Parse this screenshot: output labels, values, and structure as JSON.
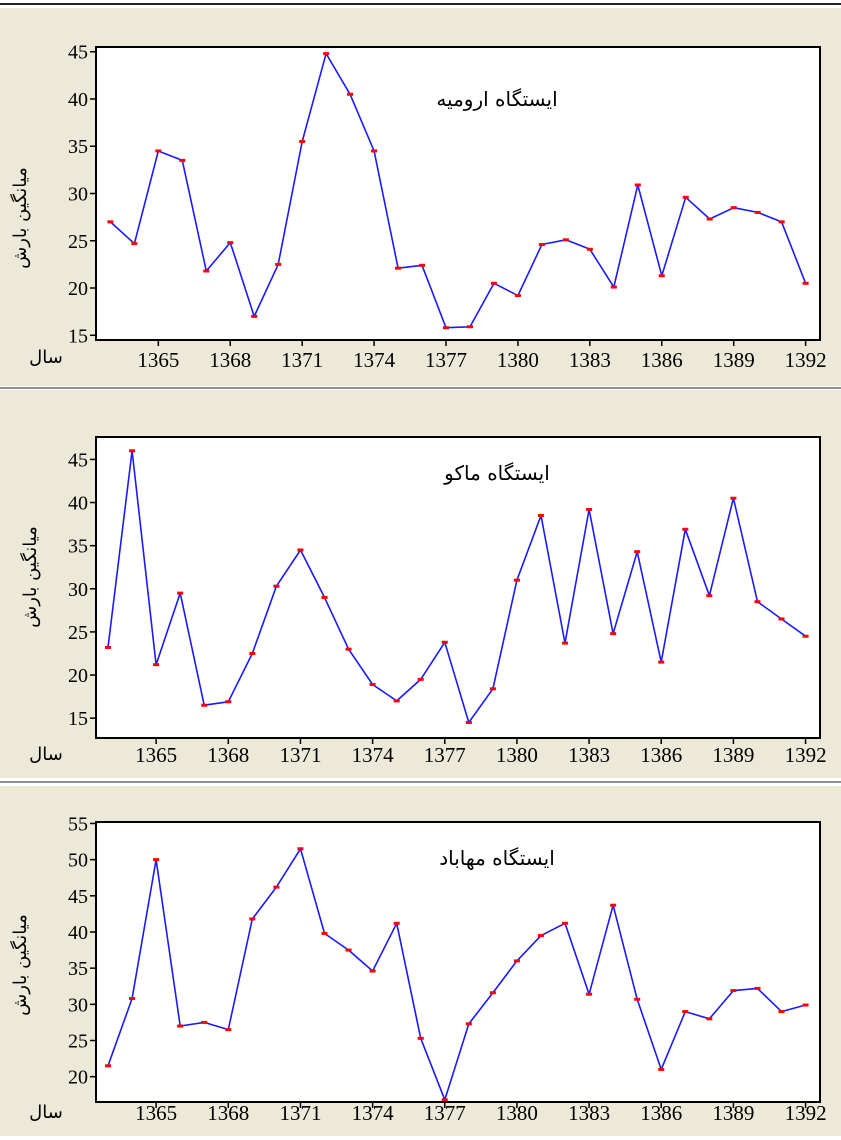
{
  "colors": {
    "panel_bg": "#ece9d8",
    "plot_bg": "#ffffff",
    "line": "#1a1aff",
    "marker": "#ff0000",
    "divider": "#222222"
  },
  "chart_data": [
    {
      "type": "line",
      "title": "ایستگاه ارومیه",
      "ylabel": "میانگین بارش",
      "xlabel": "سال",
      "x": [
        1363,
        1364,
        1365,
        1366,
        1367,
        1368,
        1369,
        1370,
        1371,
        1372,
        1373,
        1374,
        1375,
        1376,
        1377,
        1378,
        1379,
        1380,
        1381,
        1382,
        1383,
        1384,
        1385,
        1386,
        1387,
        1388,
        1389,
        1390,
        1391,
        1392
      ],
      "values": [
        27,
        24.7,
        34.5,
        33.5,
        21.8,
        24.8,
        17,
        22.5,
        35.5,
        44.8,
        40.5,
        34.5,
        22.1,
        22.4,
        15.8,
        15.9,
        20.5,
        19.2,
        24.6,
        25.1,
        24.1,
        20.1,
        30.9,
        21.3,
        29.6,
        27.3,
        28.5,
        28,
        27,
        20.5
      ],
      "yticks": [
        15,
        20,
        25,
        30,
        35,
        40,
        45
      ],
      "xticks": [
        1365,
        1368,
        1371,
        1374,
        1377,
        1380,
        1383,
        1386,
        1389,
        1392
      ],
      "ylim": [
        14.5,
        45.5
      ],
      "xlim": [
        1362.4,
        1392.6
      ]
    },
    {
      "type": "line",
      "title": "ایستگاه ماکو",
      "ylabel": "میانگین بارش",
      "xlabel": "سال",
      "x": [
        1363,
        1364,
        1365,
        1366,
        1367,
        1368,
        1369,
        1370,
        1371,
        1372,
        1373,
        1374,
        1375,
        1376,
        1377,
        1378,
        1379,
        1380,
        1381,
        1382,
        1383,
        1384,
        1385,
        1386,
        1387,
        1388,
        1389,
        1390,
        1391,
        1392
      ],
      "values": [
        23.2,
        46,
        21.2,
        29.5,
        16.5,
        16.9,
        22.5,
        30.3,
        34.5,
        29,
        23,
        18.9,
        17,
        19.5,
        23.8,
        14.5,
        18.4,
        31,
        38.5,
        23.7,
        39.2,
        24.8,
        34.3,
        21.5,
        36.9,
        29.2,
        40.5,
        28.5,
        26.5,
        24.5
      ],
      "yticks": [
        15,
        20,
        25,
        30,
        35,
        40,
        45
      ],
      "xticks": [
        1365,
        1368,
        1371,
        1374,
        1377,
        1380,
        1383,
        1386,
        1389,
        1392
      ],
      "ylim": [
        12.7,
        47.6
      ],
      "xlim": [
        1362.5,
        1392.6
      ]
    },
    {
      "type": "line",
      "title": "ایستگاه مهاباد",
      "ylabel": "میانگین بارش",
      "xlabel": "سال",
      "x": [
        1363,
        1364,
        1365,
        1366,
        1367,
        1368,
        1369,
        1370,
        1371,
        1372,
        1373,
        1374,
        1375,
        1376,
        1377,
        1378,
        1379,
        1380,
        1381,
        1382,
        1383,
        1384,
        1385,
        1386,
        1387,
        1388,
        1389,
        1390,
        1391,
        1392
      ],
      "values": [
        21.5,
        30.8,
        50,
        27,
        27.5,
        26.5,
        41.8,
        46.2,
        51.5,
        39.8,
        37.5,
        34.6,
        41.2,
        25.3,
        16.8,
        27.3,
        31.6,
        36,
        39.5,
        41.2,
        31.4,
        43.7,
        30.7,
        21,
        29,
        28,
        31.9,
        32.2,
        29,
        29.9
      ],
      "yticks": [
        20,
        25,
        30,
        35,
        40,
        45,
        50,
        55
      ],
      "xticks": [
        1365,
        1368,
        1371,
        1374,
        1377,
        1380,
        1383,
        1386,
        1389,
        1392
      ],
      "ylim": [
        16.5,
        55.2
      ],
      "xlim": [
        1362.5,
        1392.6
      ]
    }
  ]
}
